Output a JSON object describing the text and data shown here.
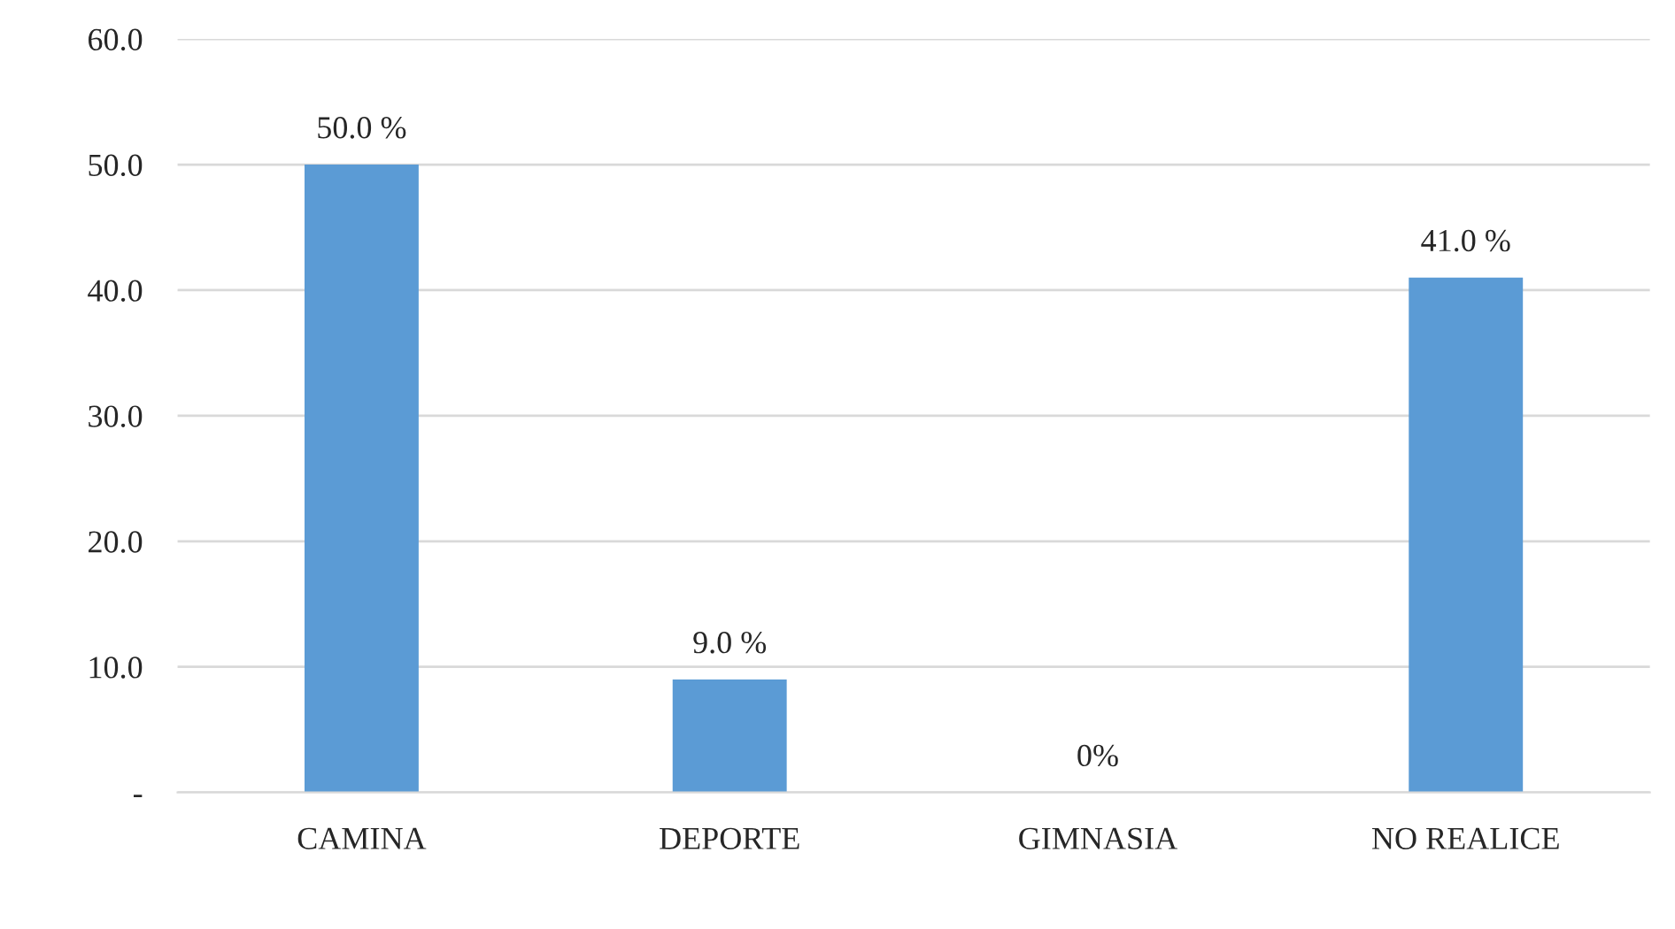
{
  "chart_data": {
    "type": "bar",
    "categories": [
      "CAMINA",
      "DEPORTE",
      "GIMNASIA",
      "NO REALICE"
    ],
    "values": [
      50.0,
      9.0,
      0,
      41.0
    ],
    "value_labels": [
      "50.0 %",
      "9.0 %",
      "0%",
      "41.0 %"
    ],
    "color": "#5b9bd5",
    "ylim": [
      0,
      60
    ],
    "yticks": [
      {
        "value": 0,
        "label": "-"
      },
      {
        "value": 10,
        "label": "10.0"
      },
      {
        "value": 20,
        "label": "20.0"
      },
      {
        "value": 30,
        "label": "30.0"
      },
      {
        "value": 40,
        "label": "40.0"
      },
      {
        "value": 50,
        "label": "50.0"
      },
      {
        "value": 60,
        "label": "60.0"
      }
    ],
    "grid": "y",
    "legend": false
  }
}
